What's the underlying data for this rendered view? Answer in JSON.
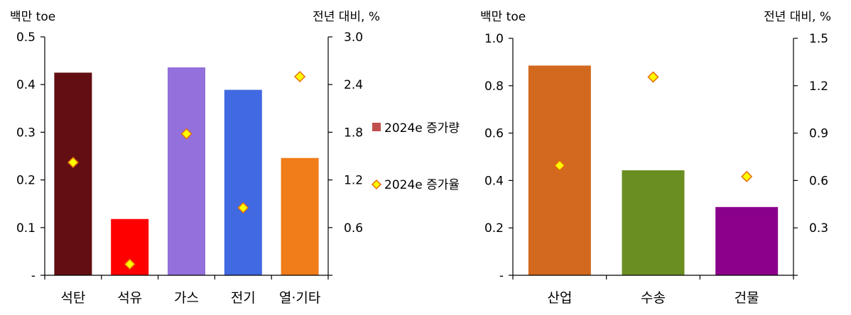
{
  "chart_data": [
    {
      "type": "bar",
      "categories": [
        "석탄",
        "석유",
        "가스",
        "전기",
        "열·기타"
      ],
      "series": [
        {
          "name": "2024e 증가량",
          "axis": "left",
          "kind": "bar",
          "values": [
            0.425,
            0.118,
            0.436,
            0.389,
            0.246
          ],
          "colors": [
            "#620E12",
            "#FF0000",
            "#9370DB",
            "#4169E1",
            "#F07C1A"
          ]
        },
        {
          "name": "2024e 증가율",
          "axis": "right",
          "kind": "marker",
          "values": [
            1.42,
            0.14,
            1.78,
            0.85,
            2.5
          ]
        }
      ],
      "ylabel": "백만 toe",
      "y2label": "전년 대비, %",
      "ylim": [
        0,
        0.5
      ],
      "y2lim": [
        0,
        3.0
      ],
      "yticks": [
        "-",
        "0.1",
        "0.2",
        "0.3",
        "0.4",
        "0.5"
      ],
      "y2ticks": [
        "",
        "0.6",
        "1.2",
        "1.8",
        "2.4",
        "3.0"
      ],
      "legend": "right"
    },
    {
      "type": "bar",
      "categories": [
        "산업",
        "수송",
        "건물"
      ],
      "series": [
        {
          "name": "2024e 증가량",
          "axis": "left",
          "kind": "bar",
          "values": [
            0.885,
            0.443,
            0.288
          ],
          "colors": [
            "#D2691E",
            "#6B8E23",
            "#8B008B"
          ]
        },
        {
          "name": "2024e 증가율",
          "axis": "right",
          "kind": "marker",
          "values": [
            0.695,
            1.255,
            0.625
          ]
        }
      ],
      "ylabel": "백만 toe",
      "y2label": "전년 대비, %",
      "ylim": [
        0,
        1.0
      ],
      "y2lim": [
        0,
        1.5
      ],
      "yticks": [
        "-",
        "0.2",
        "0.4",
        "0.6",
        "0.8",
        "1.0"
      ],
      "y2ticks": [
        "",
        "0.3",
        "0.6",
        "0.9",
        "1.2",
        "1.5"
      ]
    }
  ],
  "legend": {
    "items": [
      {
        "label": "2024e 증가량",
        "swatch": "square",
        "color": "#C0504D"
      },
      {
        "label": "2024e 증가율",
        "swatch": "diamond",
        "color": "#FFD700",
        "border": "#E36C09"
      }
    ]
  },
  "marker_style": {
    "fill": "#FFFF00",
    "stroke": "#E36C09"
  }
}
